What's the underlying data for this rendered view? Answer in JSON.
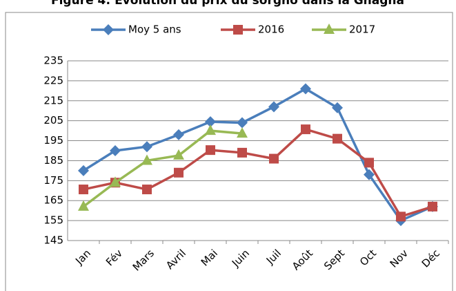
{
  "chart_data": {
    "type": "line",
    "title": "Figure 4: Evolution du prix du sorgho dans la Gnagna",
    "categories": [
      "Jan",
      "Fév",
      "Mars",
      "Avril",
      "Mai",
      "Juin",
      "Juil",
      "Août",
      "Sept",
      "Oct",
      "Nov",
      "Déc"
    ],
    "series": [
      {
        "name": "Moy 5 ans",
        "color": "#4a7ebb",
        "marker": "diamond",
        "values": [
          180,
          190,
          192,
          198,
          204.5,
          204,
          212,
          221,
          211.5,
          178,
          155,
          162
        ]
      },
      {
        "name": "2016",
        "color": "#be4b48",
        "marker": "square",
        "values": [
          170.6,
          174,
          170.6,
          179,
          190.3,
          189,
          186,
          200.7,
          196,
          184,
          157,
          162
        ]
      },
      {
        "name": "2017",
        "color": "#98b954",
        "marker": "triangle",
        "values": [
          162,
          174,
          185,
          187.6,
          200,
          198.6,
          null,
          null,
          null,
          null,
          null,
          null
        ]
      }
    ],
    "ylim": [
      145,
      235
    ],
    "yticks": [
      145,
      155,
      165,
      175,
      185,
      195,
      205,
      215,
      225,
      235
    ],
    "grid": true,
    "legend": "top"
  }
}
